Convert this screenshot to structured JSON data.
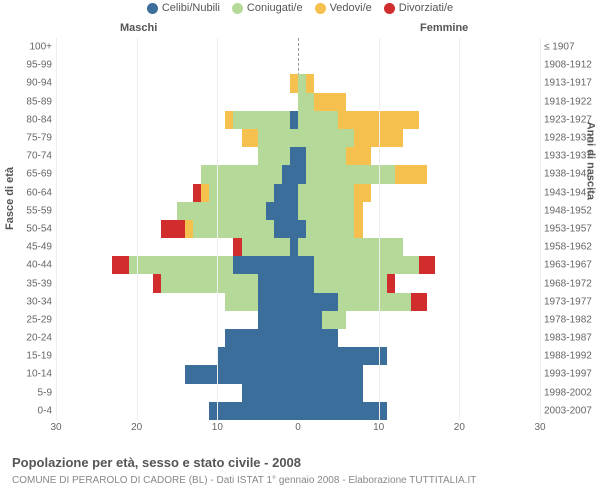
{
  "chart": {
    "type": "population-pyramid",
    "legend": [
      {
        "label": "Celibi/Nubili",
        "color": "#3b6e9a"
      },
      {
        "label": "Coniugati/e",
        "color": "#b5d999"
      },
      {
        "label": "Vedovi/e",
        "color": "#f6c04e"
      },
      {
        "label": "Divorziati/e",
        "color": "#d22d2d"
      }
    ],
    "header_male": "Maschi",
    "header_female": "Femmine",
    "yaxis_left_label": "Fasce di età",
    "yaxis_right_label": "Anni di nascita",
    "xmax": 30,
    "xticks": [
      30,
      20,
      10,
      0,
      10,
      20,
      30
    ],
    "background_color": "#ffffff",
    "grid_color": "#eeeeee",
    "centerline_color": "#999999",
    "rows": [
      {
        "age": "100+",
        "born": "≤ 1907",
        "m": {
          "cel": 0,
          "con": 0,
          "ved": 0,
          "div": 0
        },
        "f": {
          "cel": 0,
          "con": 0,
          "ved": 0,
          "div": 0
        }
      },
      {
        "age": "95-99",
        "born": "1908-1912",
        "m": {
          "cel": 0,
          "con": 0,
          "ved": 0,
          "div": 0
        },
        "f": {
          "cel": 0,
          "con": 0,
          "ved": 0,
          "div": 0
        }
      },
      {
        "age": "90-94",
        "born": "1913-1917",
        "m": {
          "cel": 0,
          "con": 0,
          "ved": 1,
          "div": 0
        },
        "f": {
          "cel": 0,
          "con": 1,
          "ved": 1,
          "div": 0
        }
      },
      {
        "age": "85-89",
        "born": "1918-1922",
        "m": {
          "cel": 0,
          "con": 0,
          "ved": 0,
          "div": 0
        },
        "f": {
          "cel": 0,
          "con": 2,
          "ved": 4,
          "div": 0
        }
      },
      {
        "age": "80-84",
        "born": "1923-1927",
        "m": {
          "cel": 1,
          "con": 7,
          "ved": 1,
          "div": 0
        },
        "f": {
          "cel": 0,
          "con": 5,
          "ved": 10,
          "div": 0
        }
      },
      {
        "age": "75-79",
        "born": "1928-1932",
        "m": {
          "cel": 0,
          "con": 5,
          "ved": 2,
          "div": 0
        },
        "f": {
          "cel": 0,
          "con": 7,
          "ved": 6,
          "div": 0
        }
      },
      {
        "age": "70-74",
        "born": "1933-1937",
        "m": {
          "cel": 1,
          "con": 4,
          "ved": 0,
          "div": 0
        },
        "f": {
          "cel": 1,
          "con": 5,
          "ved": 3,
          "div": 0
        }
      },
      {
        "age": "65-69",
        "born": "1938-1942",
        "m": {
          "cel": 2,
          "con": 10,
          "ved": 0,
          "div": 0
        },
        "f": {
          "cel": 1,
          "con": 11,
          "ved": 4,
          "div": 0
        }
      },
      {
        "age": "60-64",
        "born": "1943-1947",
        "m": {
          "cel": 3,
          "con": 8,
          "ved": 1,
          "div": 1
        },
        "f": {
          "cel": 0,
          "con": 7,
          "ved": 2,
          "div": 0
        }
      },
      {
        "age": "55-59",
        "born": "1948-1952",
        "m": {
          "cel": 4,
          "con": 11,
          "ved": 0,
          "div": 0
        },
        "f": {
          "cel": 0,
          "con": 7,
          "ved": 1,
          "div": 0
        }
      },
      {
        "age": "50-54",
        "born": "1953-1957",
        "m": {
          "cel": 3,
          "con": 10,
          "ved": 1,
          "div": 3
        },
        "f": {
          "cel": 1,
          "con": 6,
          "ved": 1,
          "div": 0
        }
      },
      {
        "age": "45-49",
        "born": "1958-1962",
        "m": {
          "cel": 1,
          "con": 6,
          "ved": 0,
          "div": 1
        },
        "f": {
          "cel": 0,
          "con": 13,
          "ved": 0,
          "div": 0
        }
      },
      {
        "age": "40-44",
        "born": "1963-1967",
        "m": {
          "cel": 8,
          "con": 13,
          "ved": 0,
          "div": 2
        },
        "f": {
          "cel": 2,
          "con": 13,
          "ved": 0,
          "div": 2
        }
      },
      {
        "age": "35-39",
        "born": "1968-1972",
        "m": {
          "cel": 5,
          "con": 12,
          "ved": 0,
          "div": 1
        },
        "f": {
          "cel": 2,
          "con": 9,
          "ved": 0,
          "div": 1
        }
      },
      {
        "age": "30-34",
        "born": "1973-1977",
        "m": {
          "cel": 5,
          "con": 4,
          "ved": 0,
          "div": 0
        },
        "f": {
          "cel": 5,
          "con": 9,
          "ved": 0,
          "div": 2
        }
      },
      {
        "age": "25-29",
        "born": "1978-1982",
        "m": {
          "cel": 5,
          "con": 0,
          "ved": 0,
          "div": 0
        },
        "f": {
          "cel": 3,
          "con": 3,
          "ved": 0,
          "div": 0
        }
      },
      {
        "age": "20-24",
        "born": "1983-1987",
        "m": {
          "cel": 9,
          "con": 0,
          "ved": 0,
          "div": 0
        },
        "f": {
          "cel": 5,
          "con": 0,
          "ved": 0,
          "div": 0
        }
      },
      {
        "age": "15-19",
        "born": "1988-1992",
        "m": {
          "cel": 10,
          "con": 0,
          "ved": 0,
          "div": 0
        },
        "f": {
          "cel": 11,
          "con": 0,
          "ved": 0,
          "div": 0
        }
      },
      {
        "age": "10-14",
        "born": "1993-1997",
        "m": {
          "cel": 14,
          "con": 0,
          "ved": 0,
          "div": 0
        },
        "f": {
          "cel": 8,
          "con": 0,
          "ved": 0,
          "div": 0
        }
      },
      {
        "age": "5-9",
        "born": "1998-2002",
        "m": {
          "cel": 7,
          "con": 0,
          "ved": 0,
          "div": 0
        },
        "f": {
          "cel": 8,
          "con": 0,
          "ved": 0,
          "div": 0
        }
      },
      {
        "age": "0-4",
        "born": "2003-2007",
        "m": {
          "cel": 11,
          "con": 0,
          "ved": 0,
          "div": 0
        },
        "f": {
          "cel": 11,
          "con": 0,
          "ved": 0,
          "div": 0
        }
      }
    ]
  },
  "title": "Popolazione per età, sesso e stato civile - 2008",
  "subtitle": "COMUNE DI PERAROLO DI CADORE (BL) - Dati ISTAT 1° gennaio 2008 - Elaborazione TUTTITALIA.IT"
}
